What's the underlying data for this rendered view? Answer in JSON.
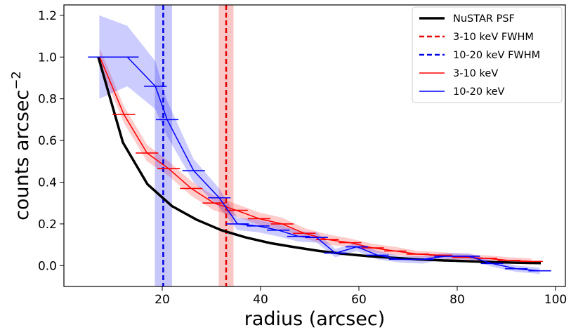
{
  "chart_data": {
    "type": "line",
    "xlabel": "radius (arcsec)",
    "ylabel": "counts arcsec",
    "ylabel_exponent": "−2",
    "xlim": [
      0,
      102
    ],
    "ylim": [
      -0.1,
      1.25
    ],
    "xticks": [
      20,
      40,
      60,
      80,
      100
    ],
    "yticks": [
      0.0,
      0.2,
      0.4,
      0.6,
      0.8,
      1.0,
      1.2
    ],
    "legend_position": "top-right",
    "series": [
      {
        "name": "NuSTAR PSF",
        "kind": "line",
        "color": "#000000",
        "x": [
          7,
          12,
          17,
          22,
          27,
          32,
          37,
          42,
          47,
          52,
          57,
          62,
          67,
          72,
          77,
          82,
          87,
          92,
          97
        ],
        "y": [
          1.0,
          0.59,
          0.39,
          0.285,
          0.22,
          0.17,
          0.135,
          0.108,
          0.088,
          0.07,
          0.056,
          0.045,
          0.037,
          0.03,
          0.025,
          0.021,
          0.017,
          0.014,
          0.012
        ]
      },
      {
        "name": "3-10 keV FWHM",
        "kind": "vline",
        "color": "#e60000",
        "x": 33.0,
        "band": [
          31.5,
          34.5
        ]
      },
      {
        "name": "10-20 keV FWHM",
        "kind": "vline",
        "color": "#0000e6",
        "x": 20.2,
        "band": [
          18.5,
          22.0
        ]
      },
      {
        "name": "3-10 keV",
        "kind": "step",
        "color": "#ff0000",
        "x": [
          7.3,
          12.2,
          16.9,
          21.3,
          25.9,
          30.5,
          35.1,
          39.7,
          44.4,
          48.9,
          53.6,
          58.2,
          62.8,
          67.4,
          72.0,
          76.7,
          81.3,
          85.8,
          90.5,
          95.1
        ],
        "xerr": 2.3,
        "y": [
          1.0,
          0.725,
          0.54,
          0.465,
          0.37,
          0.3,
          0.265,
          0.225,
          0.2,
          0.155,
          0.125,
          0.11,
          0.085,
          0.07,
          0.055,
          0.05,
          0.04,
          0.035,
          0.025,
          0.02
        ],
        "band_low": [
          0.96,
          0.685,
          0.5,
          0.43,
          0.335,
          0.265,
          0.235,
          0.195,
          0.17,
          0.13,
          0.1,
          0.09,
          0.065,
          0.05,
          0.04,
          0.035,
          0.025,
          0.02,
          0.01,
          0.005
        ],
        "band_high": [
          1.04,
          0.765,
          0.58,
          0.5,
          0.405,
          0.335,
          0.295,
          0.255,
          0.23,
          0.18,
          0.15,
          0.13,
          0.105,
          0.09,
          0.07,
          0.065,
          0.055,
          0.05,
          0.04,
          0.035
        ]
      },
      {
        "name": "10-20 keV",
        "kind": "step",
        "color": "#0000ff",
        "x": [
          7.2,
          12.9,
          18.6,
          21.0,
          26.4,
          31.6,
          35.3,
          39.5,
          43.6,
          47.7,
          51.4,
          55.2,
          59.6,
          63.8,
          68.4,
          72.9,
          77.6,
          82.3,
          87.1,
          92.0,
          96.8
        ],
        "xerr": 2.3,
        "y": [
          1.0,
          1.0,
          0.86,
          0.7,
          0.455,
          0.325,
          0.2,
          0.19,
          0.17,
          0.14,
          0.135,
          0.06,
          0.09,
          0.05,
          0.03,
          0.03,
          0.045,
          0.045,
          0.01,
          -0.015,
          -0.025
        ],
        "band_low": [
          0.8,
          0.86,
          0.75,
          0.62,
          0.4,
          0.28,
          0.17,
          0.16,
          0.14,
          0.115,
          0.11,
          0.04,
          0.07,
          0.03,
          0.015,
          0.01,
          0.03,
          0.03,
          -0.005,
          -0.03,
          -0.04
        ],
        "band_high": [
          1.2,
          1.15,
          0.98,
          0.79,
          0.51,
          0.37,
          0.23,
          0.22,
          0.2,
          0.165,
          0.16,
          0.08,
          0.11,
          0.07,
          0.045,
          0.045,
          0.06,
          0.06,
          0.025,
          0.0,
          -0.01
        ]
      }
    ]
  }
}
